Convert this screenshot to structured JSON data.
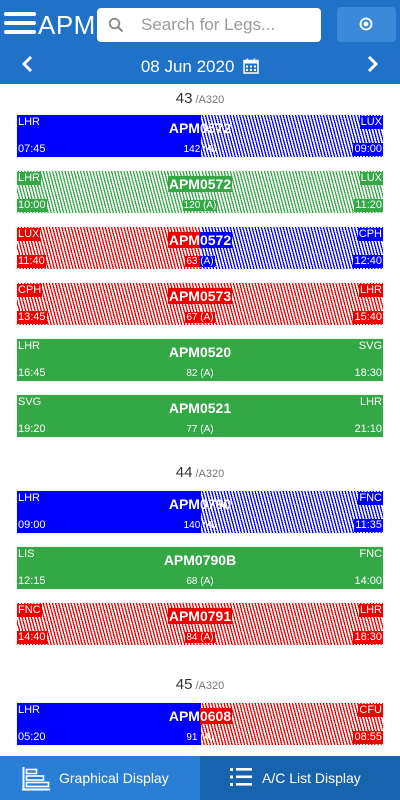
{
  "header": {
    "app_title": "APM",
    "search_placeholder": "Search for Legs...",
    "date": "08 Jun 2020"
  },
  "colors": {
    "header": "#1f72c7",
    "blue": "#0000ff",
    "red": "#ef0000",
    "green": "#33a845"
  },
  "groups": [
    {
      "number": "43",
      "type": "/A320",
      "legs": [
        {
          "from": "LHR",
          "to": "LUX",
          "dep": "07:45",
          "arr": "09:00",
          "flight": "APM0572",
          "pax": "142 (A)",
          "left": "blue-s",
          "right": "blue-h",
          "hl": "",
          "phl": ""
        },
        {
          "from": "LHR",
          "to": "LUX",
          "dep": "10:00",
          "arr": "11:20",
          "flight": "APM0572",
          "pax": "120 (A)",
          "left": "green-h",
          "right": "green-h",
          "hl": "#33a845",
          "phl": "#33a845"
        },
        {
          "from": "LUX",
          "to": "CPH",
          "dep": "11:40",
          "arr": "12:40",
          "flight": "APM0572",
          "pax": "63 (A)",
          "left": "red-h",
          "right": "blue-h",
          "hl": "split",
          "phl": "split"
        },
        {
          "from": "CPH",
          "to": "LHR",
          "dep": "13:45",
          "arr": "15:40",
          "flight": "APM0573",
          "pax": "67 (A)",
          "left": "red-h",
          "right": "red-h",
          "hl": "#ef0000",
          "phl": "#ef0000"
        },
        {
          "from": "LHR",
          "to": "SVG",
          "dep": "16:45",
          "arr": "18:30",
          "flight": "APM0520",
          "pax": "82 (A)",
          "left": "green-s",
          "right": "green-s",
          "hl": "",
          "phl": ""
        },
        {
          "from": "SVG",
          "to": "LHR",
          "dep": "19:20",
          "arr": "21:10",
          "flight": "APM0521",
          "pax": "77 (A)",
          "left": "green-s",
          "right": "green-s",
          "hl": "",
          "phl": ""
        }
      ]
    },
    {
      "number": "44",
      "type": "/A320",
      "legs": [
        {
          "from": "LHR",
          "to": "FNC",
          "dep": "09:00",
          "arr": "11:35",
          "flight": "APM0790",
          "pax": "140 (A)",
          "left": "blue-s",
          "right": "blue-h",
          "hl": "",
          "phl": ""
        },
        {
          "from": "LIS",
          "to": "FNC",
          "dep": "12:15",
          "arr": "14:00",
          "flight": "APM0790B",
          "pax": "68 (A)",
          "left": "green-s",
          "right": "green-s",
          "hl": "",
          "phl": ""
        },
        {
          "from": "FNC",
          "to": "LHR",
          "dep": "14:40",
          "arr": "18:30",
          "flight": "APM0791",
          "pax": "84 (A)",
          "left": "red-h",
          "right": "red-h",
          "hl": "#ef0000",
          "phl": "#ef0000"
        }
      ]
    },
    {
      "number": "45",
      "type": "/A320",
      "legs": [
        {
          "from": "LHR",
          "to": "CFU",
          "dep": "05:20",
          "arr": "08:55",
          "flight": "APM0608",
          "pax": "91 (A)",
          "left": "blue-s",
          "right": "red-h",
          "hl": "split2",
          "phl": ""
        }
      ]
    }
  ],
  "footer": {
    "graphical_label": "Graphical Display",
    "list_label": "A/C List Display"
  }
}
